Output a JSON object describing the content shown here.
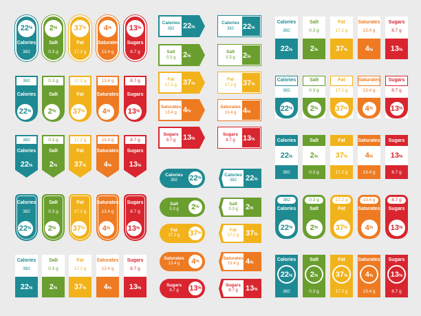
{
  "nutrients": [
    {
      "key": "calories",
      "name": "Calories",
      "amount": "382",
      "percent": "22",
      "color": "#1e8a93"
    },
    {
      "key": "salt",
      "name": "Salt",
      "amount": "0.3 g",
      "percent": "2",
      "color": "#6a9e2e"
    },
    {
      "key": "fat",
      "name": "Fat",
      "amount": "17.2 g",
      "percent": "37",
      "color": "#f2b21b"
    },
    {
      "key": "saturates",
      "name": "Saturates",
      "amount": "13.4 g",
      "percent": "4",
      "color": "#ee7a22"
    },
    {
      "key": "sugars",
      "name": "Sugars",
      "amount": "8.7 g",
      "percent": "13",
      "color": "#d8252f"
    }
  ],
  "percent_sign": "%"
}
